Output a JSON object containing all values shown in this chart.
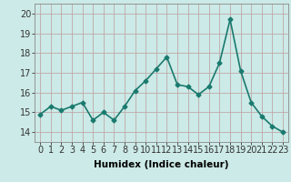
{
  "x": [
    0,
    1,
    2,
    3,
    4,
    5,
    6,
    7,
    8,
    9,
    10,
    11,
    12,
    13,
    14,
    15,
    16,
    17,
    18,
    19,
    20,
    21,
    22,
    23
  ],
  "y": [
    14.9,
    15.3,
    15.1,
    15.3,
    15.5,
    14.6,
    15.0,
    14.6,
    15.3,
    16.1,
    16.6,
    17.2,
    17.8,
    16.4,
    16.3,
    15.9,
    16.3,
    17.5,
    19.7,
    17.1,
    15.5,
    14.8,
    14.3,
    14.0
  ],
  "line_color": "#1a7a6e",
  "marker": "D",
  "marker_size": 2.5,
  "bg_color": "#cceae7",
  "grid_color": "#c0a8a8",
  "xlabel": "Humidex (Indice chaleur)",
  "ylabel_ticks": [
    14,
    15,
    16,
    17,
    18,
    19,
    20
  ],
  "ylim": [
    13.5,
    20.5
  ],
  "xlim": [
    -0.5,
    23.5
  ],
  "xlabel_fontsize": 7.5,
  "tick_fontsize": 7,
  "line_width": 1.2
}
